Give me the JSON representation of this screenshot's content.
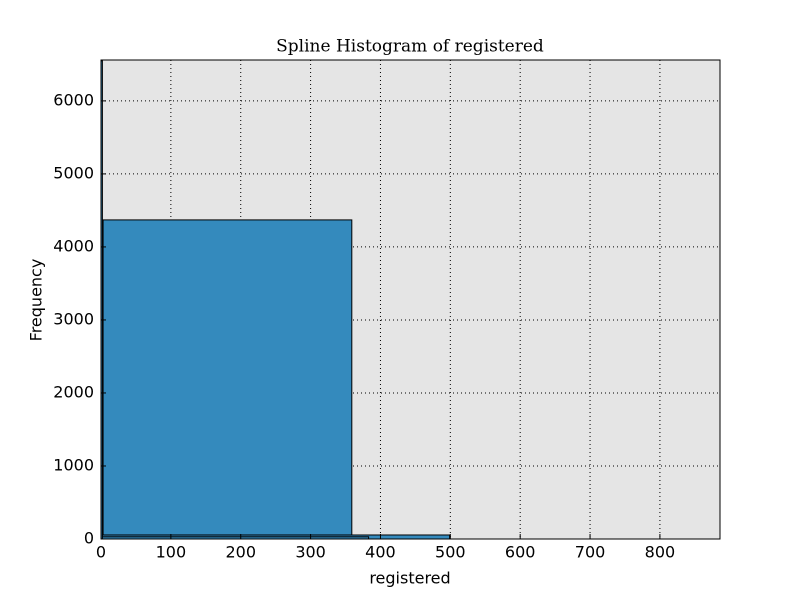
{
  "chart_data": {
    "type": "histogram",
    "title": "Spline Histogram of registered",
    "xlabel": "registered",
    "ylabel": "Frequency",
    "series": [
      {
        "color": "#348abd",
        "bins": [
          3,
          359
        ],
        "values": [
          4370
        ]
      },
      {
        "color": "#348abd",
        "bins": [
          0,
          499
        ],
        "values": [
          55
        ]
      },
      {
        "color": "#348abd",
        "bins": [
          0,
          383
        ],
        "values": [
          30
        ]
      },
      {
        "color": "#348abd",
        "bins": [
          0,
          2
        ],
        "values": [
          6550
        ]
      }
    ],
    "xlim": [
      0,
      886
    ],
    "ylim": [
      0,
      6560
    ],
    "xticks": [
      0,
      100,
      200,
      300,
      400,
      500,
      600,
      700,
      800
    ],
    "yticks": [
      0,
      1000,
      2000,
      3000,
      4000,
      5000,
      6000
    ],
    "grid": true
  }
}
